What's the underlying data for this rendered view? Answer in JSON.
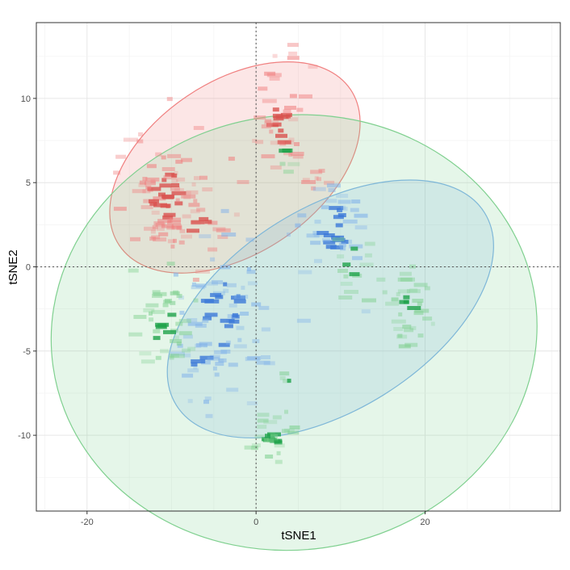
{
  "chart_data": {
    "type": "scatter",
    "title": "",
    "xlabel": "tSNE1",
    "ylabel": "tSNE2",
    "xlim": [
      -26,
      36
    ],
    "ylim": [
      -14.5,
      14.5
    ],
    "x_ticks": [
      -20,
      0,
      20
    ],
    "y_ticks": [
      10,
      5,
      0,
      -5,
      -10
    ],
    "grid": true,
    "reference_lines": {
      "x": 0,
      "y": 0
    },
    "series": [
      {
        "name": "red",
        "color": "#f08080",
        "core_color": "#d9534f",
        "ellipse": {
          "cx": -2.5,
          "cy": 5.9,
          "rx": 16.5,
          "ry": 5.1,
          "angle_deg": 34
        },
        "clusters": [
          {
            "cx": -10.5,
            "cy": 4.3,
            "sx": 2.3,
            "sy": 1.9,
            "n": 90
          },
          {
            "cx": 3.0,
            "cy": 8.6,
            "sx": 1.4,
            "sy": 1.6,
            "n": 45
          },
          {
            "cx": -6.5,
            "cy": 2.3,
            "sx": 1.5,
            "sy": 0.9,
            "n": 18
          },
          {
            "cx": 7.0,
            "cy": 5.0,
            "sx": 0.8,
            "sy": 0.3,
            "n": 8
          }
        ]
      },
      {
        "name": "blue",
        "color": "#7fb1ea",
        "core_color": "#3b78d8",
        "ellipse": {
          "cx": 8.8,
          "cy": -2.5,
          "rx": 21.5,
          "ry": 6.0,
          "angle_deg": 32
        },
        "clusters": [
          {
            "cx": -3.8,
            "cy": -2.8,
            "sx": 3.0,
            "sy": 2.3,
            "n": 75
          },
          {
            "cx": 9.3,
            "cy": 2.3,
            "sx": 2.2,
            "sy": 1.5,
            "n": 45
          },
          {
            "cx": -6.2,
            "cy": -5.8,
            "sx": 1.8,
            "sy": 0.8,
            "n": 16
          }
        ]
      },
      {
        "name": "green",
        "color": "#7fd08f",
        "core_color": "#1ea34a",
        "ellipse": {
          "cx": 4.5,
          "cy": -3.9,
          "rx": 28.8,
          "ry": 12.9,
          "angle_deg": 8
        },
        "clusters": [
          {
            "cx": -11.0,
            "cy": -3.3,
            "sx": 1.6,
            "sy": 1.6,
            "n": 45
          },
          {
            "cx": 18.0,
            "cy": -2.3,
            "sx": 1.3,
            "sy": 1.3,
            "n": 34
          },
          {
            "cx": 2.0,
            "cy": -10.0,
            "sx": 1.8,
            "sy": 0.7,
            "n": 30
          },
          {
            "cx": 11.5,
            "cy": 0.3,
            "sx": 1.4,
            "sy": 1.0,
            "n": 16
          },
          {
            "cx": 3.5,
            "cy": 6.5,
            "sx": 0.5,
            "sy": 0.6,
            "n": 5
          },
          {
            "cx": 3.8,
            "cy": -6.7,
            "sx": 0.4,
            "sy": 0.3,
            "n": 4
          }
        ]
      }
    ]
  }
}
